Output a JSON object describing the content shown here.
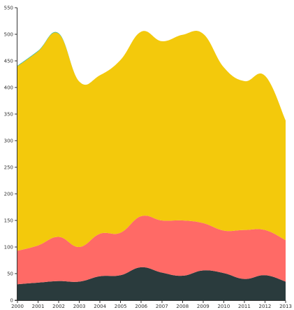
{
  "chart_data": {
    "type": "area",
    "stacked": true,
    "x": [
      2000,
      2001,
      2002,
      2003,
      2004,
      2005,
      2006,
      2007,
      2008,
      2009,
      2010,
      2011,
      2012,
      2013
    ],
    "ylim": [
      0,
      550
    ],
    "yticks": [
      0,
      50,
      100,
      150,
      200,
      250,
      300,
      350,
      400,
      450,
      500,
      550
    ],
    "title": "",
    "xlabel": "",
    "ylabel": "",
    "grid": false,
    "legend": "none",
    "series": [
      {
        "color": "#2a3b3d",
        "values": [
          30,
          33,
          36,
          35,
          45,
          47,
          62,
          52,
          46,
          56,
          51,
          40,
          47,
          35
        ]
      },
      {
        "color": "#ff6a66",
        "values": [
          63,
          70,
          83,
          65,
          80,
          80,
          96,
          98,
          104,
          89,
          80,
          92,
          85,
          78
        ]
      },
      {
        "color": "#f3c90c",
        "values": [
          347,
          365,
          382,
          311,
          298,
          325,
          347,
          337,
          349,
          356,
          307,
          280,
          290,
          225
        ]
      },
      {
        "color": "#2bb39a",
        "values": [
          1,
          1,
          1,
          0,
          0,
          0,
          0,
          0,
          0,
          0,
          0,
          0,
          0,
          0
        ]
      }
    ]
  }
}
